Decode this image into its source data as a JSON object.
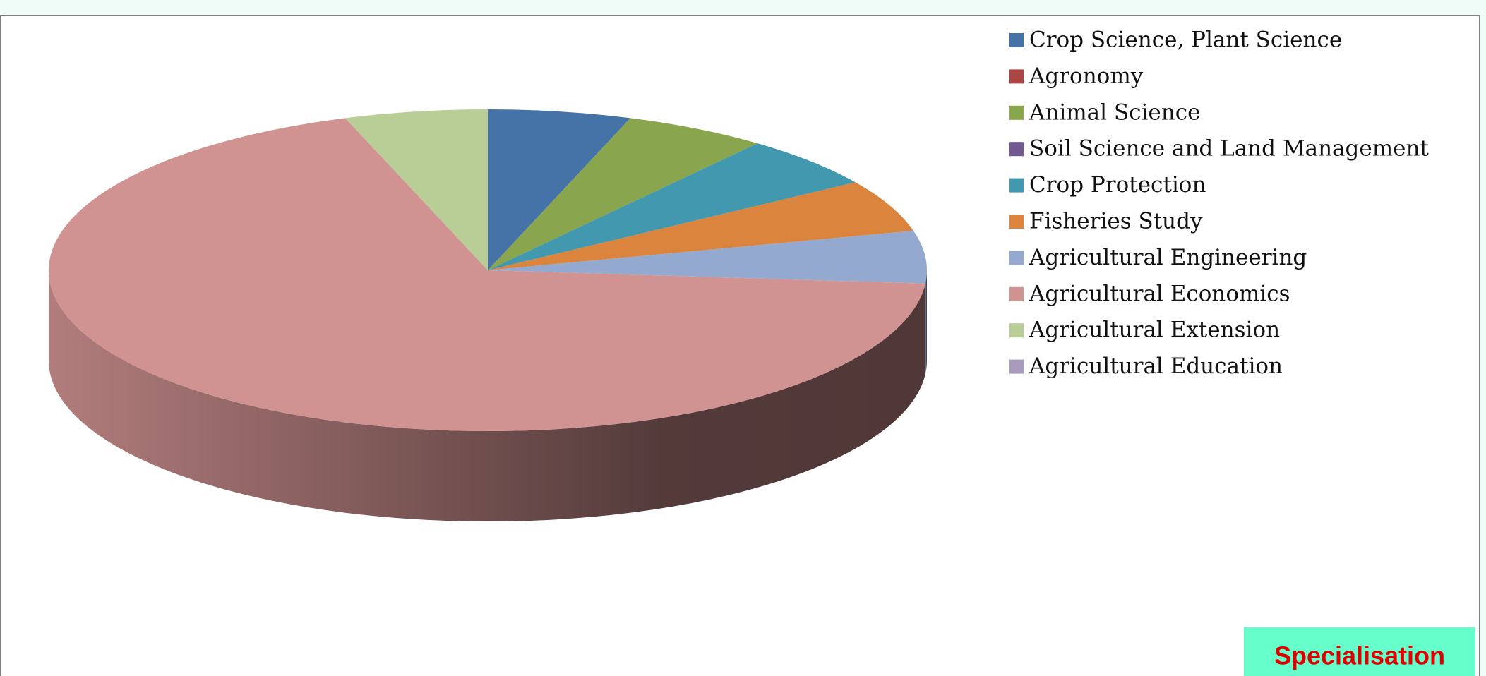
{
  "chart_data": {
    "type": "pie3d",
    "categories": [
      "Crop Science, Plant Science",
      "Agronomy",
      "Animal Science",
      "Soil Science and Land Management",
      "Crop Protection",
      "Fisheries Study",
      "Agricultural Engineering",
      "Agricultural Economics",
      "Agricultural Extension",
      "Agricultural Education"
    ],
    "values": [
      1,
      0,
      1,
      0,
      1,
      1,
      1,
      13,
      1,
      0
    ],
    "colors": [
      "#4572a7",
      "#aa4643",
      "#89a54e",
      "#71588f",
      "#4198af",
      "#db843d",
      "#93a9cf",
      "#d19392",
      "#b9cd96",
      "#a99bbd"
    ],
    "label": "Specialisation",
    "legend": "right"
  }
}
